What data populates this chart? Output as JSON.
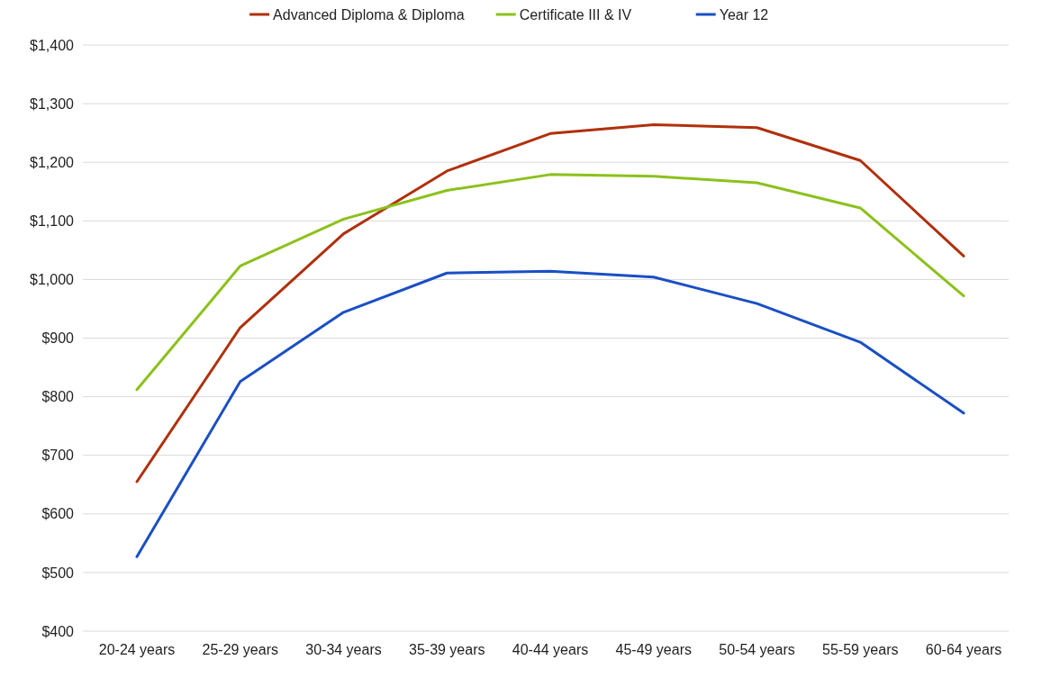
{
  "chart_data": {
    "type": "line",
    "categories": [
      "20-24 years",
      "25-29 years",
      "30-34 years",
      "35-39 years",
      "40-44 years",
      "45-49 years",
      "50-54 years",
      "55-59 years",
      "60-64 years"
    ],
    "series": [
      {
        "name": "Advanced Diploma & Diploma",
        "color": "#b0300c",
        "values": [
          655,
          918,
          1078,
          1185,
          1249,
          1264,
          1259,
          1203,
          1040
        ]
      },
      {
        "name": "Certificate III & IV",
        "color": "#8cc11c",
        "values": [
          812,
          1023,
          1103,
          1152,
          1179,
          1176,
          1165,
          1122,
          972
        ]
      },
      {
        "name": "Year 12",
        "color": "#1a4fc4",
        "values": [
          527,
          826,
          944,
          1011,
          1014,
          1004,
          959,
          893,
          772
        ]
      }
    ],
    "ylim": [
      400,
      1400
    ],
    "yticks": [
      {
        "value": 400,
        "label": "$400"
      },
      {
        "value": 500,
        "label": "$500"
      },
      {
        "value": 600,
        "label": "$600"
      },
      {
        "value": 700,
        "label": "$700"
      },
      {
        "value": 800,
        "label": "$800"
      },
      {
        "value": 900,
        "label": "$900"
      },
      {
        "value": 1000,
        "label": "$1,000"
      },
      {
        "value": 1100,
        "label": "$1,100"
      },
      {
        "value": 1200,
        "label": "$1,200"
      },
      {
        "value": 1300,
        "label": "$1,300"
      },
      {
        "value": 1400,
        "label": "$1,400"
      }
    ],
    "grid": "y",
    "legend": "top",
    "marker": "none",
    "line_style": "solid"
  }
}
